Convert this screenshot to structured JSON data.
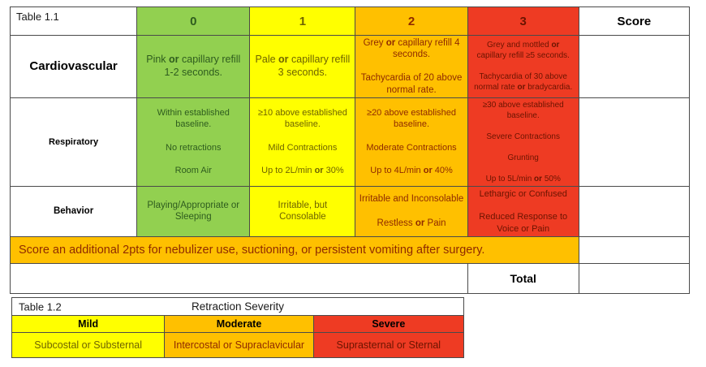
{
  "colors": {
    "score0_green": "#92d050",
    "score1_yellow": "#ffff00",
    "score2_orange": "#ffc000",
    "score3_red": "#ee3b23"
  },
  "table1": {
    "title": "Table 1.1",
    "score_header": "Score",
    "columns": [
      "0",
      "1",
      "2",
      "3"
    ],
    "rows": [
      {
        "label": "Cardiovascular",
        "cells": [
          "Pink **or** capillary refill 1-2 seconds.",
          "Pale **or** capillary refill 3 seconds.",
          "Grey **or** capillary refill 4 seconds.\n\nTachycardia of 20 above normal rate.",
          "Grey and mottled **or** capillary refill ≥5 seconds.\n\nTachycardia of 30 above normal rate **or** bradycardia."
        ]
      },
      {
        "label": "Respiratory",
        "cells": [
          "Within established baseline.\n\nNo retractions\n\nRoom Air",
          "≥10 above established baseline.\n\nMild Contractions\n\nUp to 2L/min **or** 30%",
          "≥20 above established baseline.\n\nModerate Contractions\n\nUp to 4L/min **or** 40%",
          "≥30 above established baseline.\n\nSevere Contractions\n\nGrunting\n\nUp to 5L/min **or** 50%"
        ]
      },
      {
        "label": "Behavior",
        "cells": [
          "Playing/Appropriate or Sleeping",
          "Irritable, but Consolable",
          "Irritable and Inconsolable\n\nRestless **or** Pain",
          "Lethargic or Confused\n\nReduced Response to Voice or Pain"
        ]
      }
    ],
    "banner": "Score an additional 2pts for nebulizer use, suctioning, or persistent vomiting after surgery.",
    "total_label": "Total"
  },
  "table2": {
    "title": "Table 1.2",
    "header": "Retraction Severity",
    "levels": [
      {
        "label": "Mild",
        "value": "Subcostal or Substernal"
      },
      {
        "label": "Moderate",
        "value": "Intercostal or Supraclavicular"
      },
      {
        "label": "Severe",
        "value": "Suprasternal or Sternal"
      }
    ]
  }
}
